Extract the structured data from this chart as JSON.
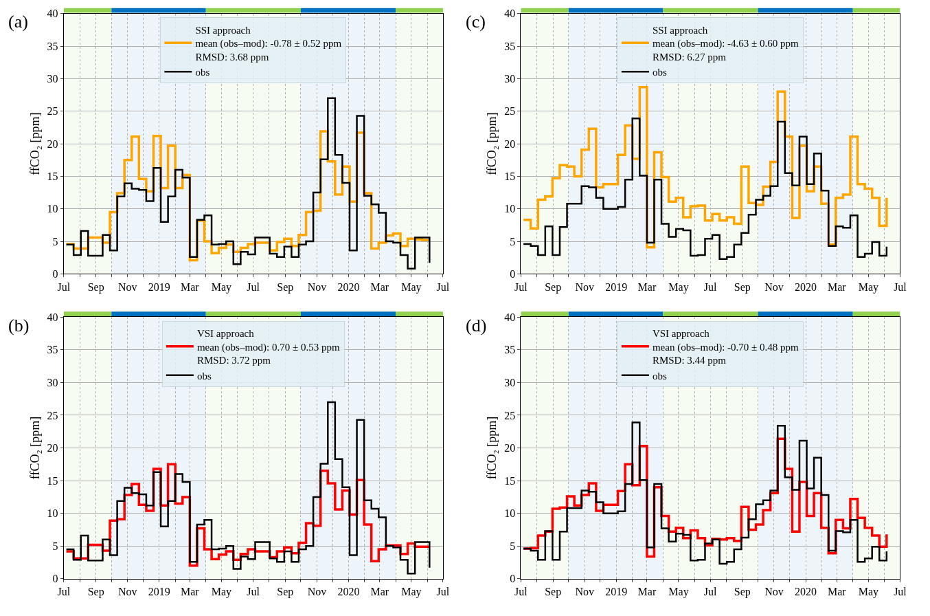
{
  "chart_data": [
    {
      "type": "step",
      "annotations": [
        "(a)"
      ],
      "ylabel": "ffCO₂ [ppm]",
      "legend": "top",
      "grid": true,
      "x": [
        "2018-07-06",
        "2018-07-20",
        "2018-08-03",
        "2018-08-17",
        "2018-08-31",
        "2018-09-14",
        "2018-09-28",
        "2018-10-12",
        "2018-10-26",
        "2018-11-09",
        "2018-11-23",
        "2018-12-07",
        "2018-12-21",
        "2019-01-04",
        "2019-01-18",
        "2019-02-01",
        "2019-02-15",
        "2019-03-01",
        "2019-03-15",
        "2019-03-29",
        "2019-04-12",
        "2019-04-26",
        "2019-05-10",
        "2019-05-24",
        "2019-06-07",
        "2019-06-21",
        "2019-07-05",
        "2019-07-19",
        "2019-08-02",
        "2019-08-16",
        "2019-08-30",
        "2019-09-13",
        "2019-09-27",
        "2019-10-11",
        "2019-10-25",
        "2019-11-08",
        "2019-11-22",
        "2019-12-06",
        "2019-12-20",
        "2020-01-03",
        "2020-01-17",
        "2020-01-31",
        "2020-02-14",
        "2020-02-28",
        "2020-03-13",
        "2020-03-27",
        "2020-04-10",
        "2020-04-24",
        "2020-05-08",
        "2020-05-22",
        "2020-06-05"
      ],
      "xlim": [
        "2018-07-01",
        "2020-07-01"
      ],
      "xticks": [
        {
          "value": "2018-07-01",
          "label": "Jul"
        },
        {
          "value": "2018-08-01",
          "label": null
        },
        {
          "value": "2018-09-01",
          "label": "Sep"
        },
        {
          "value": "2018-10-01",
          "label": null
        },
        {
          "value": "2018-11-01",
          "label": "Nov"
        },
        {
          "value": "2018-12-01",
          "label": null
        },
        {
          "value": "2019-01-01",
          "label": "2019"
        },
        {
          "value": "2019-02-01",
          "label": null
        },
        {
          "value": "2019-03-01",
          "label": "Mar"
        },
        {
          "value": "2019-04-01",
          "label": null
        },
        {
          "value": "2019-05-01",
          "label": "May"
        },
        {
          "value": "2019-06-01",
          "label": null
        },
        {
          "value": "2019-07-01",
          "label": "Jul"
        },
        {
          "value": "2019-08-01",
          "label": null
        },
        {
          "value": "2019-09-01",
          "label": "Sep"
        },
        {
          "value": "2019-10-01",
          "label": null
        },
        {
          "value": "2019-11-01",
          "label": "Nov"
        },
        {
          "value": "2019-12-01",
          "label": null
        },
        {
          "value": "2020-01-01",
          "label": "2020"
        },
        {
          "value": "2020-02-01",
          "label": null
        },
        {
          "value": "2020-03-01",
          "label": "Mar"
        },
        {
          "value": "2020-04-01",
          "label": null
        },
        {
          "value": "2020-05-01",
          "label": "May"
        },
        {
          "value": "2020-06-01",
          "label": null
        },
        {
          "value": "2020-07-01",
          "label": "Jul"
        }
      ],
      "ylim": [
        0,
        40
      ],
      "yticks": [
        0,
        5,
        10,
        15,
        20,
        25,
        30,
        35,
        40
      ],
      "bands": [
        {
          "axis": "x",
          "from": "2018-07-01",
          "to": "2018-10-01",
          "color": "#92d050"
        },
        {
          "axis": "x",
          "from": "2018-10-01",
          "to": "2019-04-01",
          "color": "#0070c0"
        },
        {
          "axis": "x",
          "from": "2019-04-01",
          "to": "2019-10-01",
          "color": "#92d050"
        },
        {
          "axis": "x",
          "from": "2019-10-01",
          "to": "2020-04-01",
          "color": "#0070c0"
        },
        {
          "axis": "x",
          "from": "2020-04-01",
          "to": "2020-07-01",
          "color": "#92d050"
        }
      ],
      "series": [
        {
          "name": "SSI approach\nmean (obs–mod): -0.78 ± 0.52 ppm\nRMSD: 3.68 ppm",
          "color": "#ffa500",
          "values": [
            4.6,
            3.9,
            3.9,
            5.6,
            5.6,
            4.8,
            9.5,
            12.4,
            17.5,
            21.1,
            14.6,
            12.7,
            21.2,
            13.2,
            19.7,
            13.2,
            15.2,
            2.1,
            8.2,
            5.0,
            3.2,
            4.0,
            4.5,
            3.4,
            4.0,
            4.6,
            4.8,
            4.8,
            3.6,
            4.9,
            5.4,
            4.3,
            6.0,
            9.5,
            9.7,
            21.9,
            17.3,
            12.2,
            16.5,
            11.1,
            21.7,
            12.4,
            3.9,
            4.8,
            5.9,
            6.2,
            4.3,
            5.4,
            5.3,
            5.2,
            5.2
          ]
        },
        {
          "name": "obs",
          "color": "#000000",
          "values": [
            4.5,
            2.9,
            6.6,
            2.8,
            2.8,
            6.0,
            3.6,
            11.9,
            13.9,
            13.1,
            12.9,
            11.2,
            16.3,
            8.0,
            11.9,
            16.0,
            14.8,
            2.6,
            8.3,
            9.0,
            4.5,
            4.6,
            5.0,
            1.5,
            3.4,
            3.0,
            5.6,
            5.6,
            3.1,
            2.6,
            4.2,
            2.6,
            4.5,
            5.0,
            12.5,
            17.6,
            27.0,
            18.3,
            14.0,
            3.6,
            24.3,
            12.0,
            10.7,
            9.4,
            5.0,
            4.8,
            2.9,
            0.8,
            5.6,
            5.6,
            1.7
          ]
        }
      ]
    },
    {
      "type": "step",
      "annotations": [
        "(c)"
      ],
      "ylabel": "ffCO₂ [ppm]",
      "legend": "top",
      "grid": true,
      "x": [
        "2018-07-06",
        "2018-07-20",
        "2018-08-03",
        "2018-08-17",
        "2018-08-31",
        "2018-09-14",
        "2018-09-28",
        "2018-10-12",
        "2018-10-26",
        "2018-11-09",
        "2018-11-23",
        "2018-12-07",
        "2018-12-21",
        "2019-01-04",
        "2019-01-18",
        "2019-02-01",
        "2019-02-15",
        "2019-03-01",
        "2019-03-15",
        "2019-03-29",
        "2019-04-12",
        "2019-04-26",
        "2019-05-10",
        "2019-05-24",
        "2019-06-07",
        "2019-06-21",
        "2019-07-05",
        "2019-07-19",
        "2019-08-02",
        "2019-08-16",
        "2019-08-30",
        "2019-09-13",
        "2019-09-27",
        "2019-10-11",
        "2019-10-25",
        "2019-11-08",
        "2019-11-22",
        "2019-12-06",
        "2019-12-20",
        "2020-01-03",
        "2020-01-17",
        "2020-01-31",
        "2020-02-14",
        "2020-02-28",
        "2020-03-13",
        "2020-03-27",
        "2020-04-10",
        "2020-04-24",
        "2020-05-08",
        "2020-05-22",
        "2020-06-05"
      ],
      "xlim": [
        "2018-07-01",
        "2020-07-01"
      ],
      "xticks": [
        {
          "value": "2018-07-01",
          "label": "Jul"
        },
        {
          "value": "2018-08-01",
          "label": null
        },
        {
          "value": "2018-09-01",
          "label": "Sep"
        },
        {
          "value": "2018-10-01",
          "label": null
        },
        {
          "value": "2018-11-01",
          "label": "Nov"
        },
        {
          "value": "2018-12-01",
          "label": null
        },
        {
          "value": "2019-01-01",
          "label": "2019"
        },
        {
          "value": "2019-02-01",
          "label": null
        },
        {
          "value": "2019-03-01",
          "label": "Mar"
        },
        {
          "value": "2019-04-01",
          "label": null
        },
        {
          "value": "2019-05-01",
          "label": "May"
        },
        {
          "value": "2019-06-01",
          "label": null
        },
        {
          "value": "2019-07-01",
          "label": "Jul"
        },
        {
          "value": "2019-08-01",
          "label": null
        },
        {
          "value": "2019-09-01",
          "label": "Sep"
        },
        {
          "value": "2019-10-01",
          "label": null
        },
        {
          "value": "2019-11-01",
          "label": "Nov"
        },
        {
          "value": "2019-12-01",
          "label": null
        },
        {
          "value": "2020-01-01",
          "label": "2020"
        },
        {
          "value": "2020-02-01",
          "label": null
        },
        {
          "value": "2020-03-01",
          "label": "Mar"
        },
        {
          "value": "2020-04-01",
          "label": null
        },
        {
          "value": "2020-05-01",
          "label": "May"
        },
        {
          "value": "2020-06-01",
          "label": null
        },
        {
          "value": "2020-07-01",
          "label": "Jul"
        }
      ],
      "ylim": [
        0,
        40
      ],
      "yticks": [
        0,
        5,
        10,
        15,
        20,
        25,
        30,
        35,
        40
      ],
      "bands": [
        {
          "axis": "x",
          "from": "2018-07-01",
          "to": "2018-10-01",
          "color": "#92d050"
        },
        {
          "axis": "x",
          "from": "2018-10-01",
          "to": "2019-04-01",
          "color": "#0070c0"
        },
        {
          "axis": "x",
          "from": "2019-04-01",
          "to": "2019-10-01",
          "color": "#92d050"
        },
        {
          "axis": "x",
          "from": "2019-10-01",
          "to": "2020-04-01",
          "color": "#0070c0"
        },
        {
          "axis": "x",
          "from": "2020-04-01",
          "to": "2020-07-01",
          "color": "#92d050"
        }
      ],
      "series": [
        {
          "name": "SSI approach\nmean (obs–mod): -4.63 ± 0.60 ppm\nRMSD: 6.27 ppm",
          "color": "#ffa500",
          "values": [
            8.3,
            7.0,
            11.4,
            11.9,
            14.7,
            16.7,
            16.5,
            15.0,
            19.1,
            22.3,
            13.3,
            13.8,
            13.8,
            18.3,
            22.8,
            17.7,
            28.7,
            4.1,
            18.7,
            14.9,
            11.1,
            11.7,
            8.7,
            10.4,
            10.5,
            8.2,
            9.2,
            8.2,
            8.7,
            7.7,
            16.5,
            10.9,
            10.6,
            13.4,
            17.2,
            28.0,
            21.1,
            8.6,
            19.7,
            12.7,
            16.5,
            10.8,
            4.5,
            11.7,
            12.2,
            21.1,
            13.8,
            13.1,
            11.7,
            7.4,
            11.7
          ]
        },
        {
          "name": "obs",
          "color": "#000000",
          "values": [
            4.6,
            4.3,
            2.9,
            7.3,
            2.9,
            7.2,
            10.8,
            10.8,
            13.5,
            13.3,
            11.7,
            10.0,
            10.0,
            10.3,
            14.5,
            23.9,
            15.1,
            4.8,
            14.5,
            7.7,
            5.7,
            6.9,
            6.7,
            2.8,
            2.9,
            5.4,
            6.0,
            2.3,
            2.6,
            4.5,
            6.3,
            9.1,
            11.4,
            12.0,
            13.5,
            23.4,
            15.5,
            13.6,
            21.1,
            13.8,
            18.5,
            12.8,
            4.3,
            7.3,
            7.1,
            9.0,
            2.6,
            3.1,
            4.9,
            2.8,
            4.2
          ]
        }
      ]
    },
    {
      "type": "step",
      "annotations": [
        "(b)"
      ],
      "ylabel": "ffCO₂ [ppm]",
      "legend": "top",
      "grid": true,
      "x": [
        "2018-07-06",
        "2018-07-20",
        "2018-08-03",
        "2018-08-17",
        "2018-08-31",
        "2018-09-14",
        "2018-09-28",
        "2018-10-12",
        "2018-10-26",
        "2018-11-09",
        "2018-11-23",
        "2018-12-07",
        "2018-12-21",
        "2019-01-04",
        "2019-01-18",
        "2019-02-01",
        "2019-02-15",
        "2019-03-01",
        "2019-03-15",
        "2019-03-29",
        "2019-04-12",
        "2019-04-26",
        "2019-05-10",
        "2019-05-24",
        "2019-06-07",
        "2019-06-21",
        "2019-07-05",
        "2019-07-19",
        "2019-08-02",
        "2019-08-16",
        "2019-08-30",
        "2019-09-13",
        "2019-09-27",
        "2019-10-11",
        "2019-10-25",
        "2019-11-08",
        "2019-11-22",
        "2019-12-06",
        "2019-12-20",
        "2020-01-03",
        "2020-01-17",
        "2020-01-31",
        "2020-02-14",
        "2020-02-28",
        "2020-03-13",
        "2020-03-27",
        "2020-04-10",
        "2020-04-24",
        "2020-05-08",
        "2020-05-22",
        "2020-06-05"
      ],
      "xlim": [
        "2018-07-01",
        "2020-07-01"
      ],
      "xticks": [
        {
          "value": "2018-07-01",
          "label": "Jul"
        },
        {
          "value": "2018-08-01",
          "label": null
        },
        {
          "value": "2018-09-01",
          "label": "Sep"
        },
        {
          "value": "2018-10-01",
          "label": null
        },
        {
          "value": "2018-11-01",
          "label": "Nov"
        },
        {
          "value": "2018-12-01",
          "label": null
        },
        {
          "value": "2019-01-01",
          "label": "2019"
        },
        {
          "value": "2019-02-01",
          "label": null
        },
        {
          "value": "2019-03-01",
          "label": "Mar"
        },
        {
          "value": "2019-04-01",
          "label": null
        },
        {
          "value": "2019-05-01",
          "label": "May"
        },
        {
          "value": "2019-06-01",
          "label": null
        },
        {
          "value": "2019-07-01",
          "label": "Jul"
        },
        {
          "value": "2019-08-01",
          "label": null
        },
        {
          "value": "2019-09-01",
          "label": "Sep"
        },
        {
          "value": "2019-10-01",
          "label": null
        },
        {
          "value": "2019-11-01",
          "label": "Nov"
        },
        {
          "value": "2019-12-01",
          "label": null
        },
        {
          "value": "2020-01-01",
          "label": "2020"
        },
        {
          "value": "2020-02-01",
          "label": null
        },
        {
          "value": "2020-03-01",
          "label": "Mar"
        },
        {
          "value": "2020-04-01",
          "label": null
        },
        {
          "value": "2020-05-01",
          "label": "May"
        },
        {
          "value": "2020-06-01",
          "label": null
        },
        {
          "value": "2020-07-01",
          "label": "Jul"
        }
      ],
      "ylim": [
        0,
        40
      ],
      "yticks": [
        0,
        5,
        10,
        15,
        20,
        25,
        30,
        35,
        40
      ],
      "bands": [
        {
          "axis": "x",
          "from": "2018-07-01",
          "to": "2018-10-01",
          "color": "#92d050"
        },
        {
          "axis": "x",
          "from": "2018-10-01",
          "to": "2019-04-01",
          "color": "#0070c0"
        },
        {
          "axis": "x",
          "from": "2019-04-01",
          "to": "2019-10-01",
          "color": "#92d050"
        },
        {
          "axis": "x",
          "from": "2019-10-01",
          "to": "2020-04-01",
          "color": "#0070c0"
        },
        {
          "axis": "x",
          "from": "2020-04-01",
          "to": "2020-07-01",
          "color": "#92d050"
        }
      ],
      "series": [
        {
          "name": "VSI approach\nmean (obs–mod): 0.70 ± 0.53 ppm\nRMSD: 3.72 ppm",
          "color": "#ff0000",
          "values": [
            4.2,
            3.1,
            3.1,
            5.2,
            5.2,
            4.3,
            8.9,
            9.1,
            12.8,
            14.5,
            11.3,
            10.4,
            16.8,
            11.2,
            17.5,
            11.5,
            12.5,
            2.0,
            7.7,
            4.5,
            3.0,
            3.7,
            4.2,
            2.9,
            3.8,
            4.5,
            4.2,
            4.2,
            3.3,
            4.2,
            4.8,
            3.9,
            5.5,
            8.5,
            8.1,
            16.5,
            14.6,
            10.6,
            13.5,
            9.8,
            15.1,
            8.3,
            2.7,
            4.5,
            5.1,
            5.1,
            3.8,
            5.4,
            4.9,
            4.9,
            4.9
          ]
        },
        {
          "name": "obs",
          "color": "#000000",
          "values": [
            4.5,
            2.9,
            6.6,
            2.8,
            2.8,
            6.0,
            3.6,
            11.9,
            13.9,
            13.1,
            12.9,
            11.2,
            16.3,
            8.0,
            11.9,
            16.0,
            14.8,
            2.6,
            8.3,
            9.0,
            4.5,
            4.6,
            5.0,
            1.5,
            3.4,
            3.0,
            5.6,
            5.6,
            3.1,
            2.6,
            4.2,
            2.6,
            4.5,
            5.0,
            12.5,
            17.6,
            27.0,
            18.3,
            14.0,
            3.6,
            24.3,
            12.0,
            10.7,
            9.4,
            5.0,
            4.8,
            2.9,
            0.8,
            5.6,
            5.6,
            1.7
          ]
        }
      ]
    },
    {
      "type": "step",
      "annotations": [
        "(d)"
      ],
      "ylabel": "ffCO₂ [ppm]",
      "legend": "top",
      "grid": true,
      "x": [
        "2018-07-06",
        "2018-07-20",
        "2018-08-03",
        "2018-08-17",
        "2018-08-31",
        "2018-09-14",
        "2018-09-28",
        "2018-10-12",
        "2018-10-26",
        "2018-11-09",
        "2018-11-23",
        "2018-12-07",
        "2018-12-21",
        "2019-01-04",
        "2019-01-18",
        "2019-02-01",
        "2019-02-15",
        "2019-03-01",
        "2019-03-15",
        "2019-03-29",
        "2019-04-12",
        "2019-04-26",
        "2019-05-10",
        "2019-05-24",
        "2019-06-07",
        "2019-06-21",
        "2019-07-05",
        "2019-07-19",
        "2019-08-02",
        "2019-08-16",
        "2019-08-30",
        "2019-09-13",
        "2019-09-27",
        "2019-10-11",
        "2019-10-25",
        "2019-11-08",
        "2019-11-22",
        "2019-12-06",
        "2019-12-20",
        "2020-01-03",
        "2020-01-17",
        "2020-01-31",
        "2020-02-14",
        "2020-02-28",
        "2020-03-13",
        "2020-03-27",
        "2020-04-10",
        "2020-04-24",
        "2020-05-08",
        "2020-05-22",
        "2020-06-05"
      ],
      "xlim": [
        "2018-07-01",
        "2020-07-01"
      ],
      "xticks": [
        {
          "value": "2018-07-01",
          "label": "Jul"
        },
        {
          "value": "2018-08-01",
          "label": null
        },
        {
          "value": "2018-09-01",
          "label": "Sep"
        },
        {
          "value": "2018-10-01",
          "label": null
        },
        {
          "value": "2018-11-01",
          "label": "Nov"
        },
        {
          "value": "2018-12-01",
          "label": null
        },
        {
          "value": "2019-01-01",
          "label": "2019"
        },
        {
          "value": "2019-02-01",
          "label": null
        },
        {
          "value": "2019-03-01",
          "label": "Mar"
        },
        {
          "value": "2019-04-01",
          "label": null
        },
        {
          "value": "2019-05-01",
          "label": "May"
        },
        {
          "value": "2019-06-01",
          "label": null
        },
        {
          "value": "2019-07-01",
          "label": "Jul"
        },
        {
          "value": "2019-08-01",
          "label": null
        },
        {
          "value": "2019-09-01",
          "label": "Sep"
        },
        {
          "value": "2019-10-01",
          "label": null
        },
        {
          "value": "2019-11-01",
          "label": "Nov"
        },
        {
          "value": "2019-12-01",
          "label": null
        },
        {
          "value": "2020-01-01",
          "label": "2020"
        },
        {
          "value": "2020-02-01",
          "label": null
        },
        {
          "value": "2020-03-01",
          "label": "Mar"
        },
        {
          "value": "2020-04-01",
          "label": null
        },
        {
          "value": "2020-05-01",
          "label": "May"
        },
        {
          "value": "2020-06-01",
          "label": null
        },
        {
          "value": "2020-07-01",
          "label": "Jul"
        }
      ],
      "ylim": [
        0,
        40
      ],
      "yticks": [
        0,
        5,
        10,
        15,
        20,
        25,
        30,
        35,
        40
      ],
      "bands": [
        {
          "axis": "x",
          "from": "2018-07-01",
          "to": "2018-10-01",
          "color": "#92d050"
        },
        {
          "axis": "x",
          "from": "2018-10-01",
          "to": "2019-04-01",
          "color": "#0070c0"
        },
        {
          "axis": "x",
          "from": "2019-04-01",
          "to": "2019-10-01",
          "color": "#92d050"
        },
        {
          "axis": "x",
          "from": "2019-10-01",
          "to": "2020-04-01",
          "color": "#0070c0"
        },
        {
          "axis": "x",
          "from": "2020-04-01",
          "to": "2020-07-01",
          "color": "#92d050"
        }
      ],
      "series": [
        {
          "name": "VSI approach\nmean (obs–mod): -0.70 ± 0.48 ppm\nRMSD: 3.44 ppm",
          "color": "#ff0000",
          "values": [
            4.6,
            4.7,
            6.6,
            7.2,
            10.7,
            10.9,
            12.6,
            11.2,
            12.8,
            14.6,
            10.4,
            11.3,
            11.3,
            13.4,
            17.5,
            14.3,
            20.3,
            3.4,
            14.0,
            9.6,
            7.2,
            7.8,
            6.2,
            7.4,
            6.2,
            5.1,
            6.1,
            6.0,
            6.2,
            5.8,
            11.0,
            7.5,
            8.3,
            10.5,
            13.1,
            21.4,
            16.8,
            7.2,
            14.8,
            9.6,
            13.1,
            7.8,
            3.9,
            9.0,
            7.7,
            12.2,
            9.3,
            7.8,
            6.6,
            4.9,
            6.8
          ]
        },
        {
          "name": "obs",
          "color": "#000000",
          "values": [
            4.6,
            4.3,
            2.9,
            7.3,
            2.9,
            7.2,
            10.8,
            10.8,
            13.5,
            13.3,
            11.7,
            10.0,
            10.0,
            10.3,
            14.5,
            23.9,
            15.1,
            4.8,
            14.5,
            7.7,
            5.7,
            6.9,
            6.7,
            2.8,
            2.9,
            5.4,
            6.0,
            2.3,
            2.6,
            4.5,
            6.3,
            9.1,
            11.4,
            12.0,
            13.5,
            23.4,
            15.5,
            13.6,
            21.1,
            13.8,
            18.5,
            12.8,
            4.3,
            7.3,
            7.1,
            9.0,
            2.6,
            3.1,
            4.9,
            2.8,
            4.2
          ]
        }
      ]
    }
  ]
}
